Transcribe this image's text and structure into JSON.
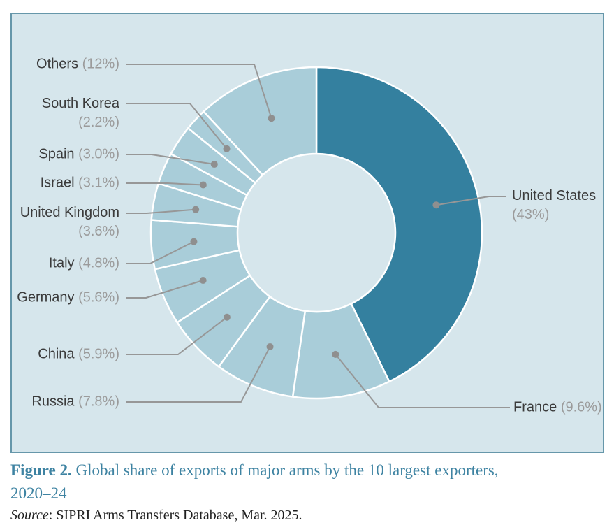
{
  "figure": {
    "caption_label": "Figure 2.",
    "caption_line1": " Global share of exports of major arms by the 10 largest exporters,",
    "caption_line2": "2020–24",
    "source_label": "Source",
    "source_text": ": SIPRI Arms Transfers Database, Mar. 2025."
  },
  "chart_data": {
    "type": "pie",
    "subtype": "donut",
    "title": "Global share of exports of major arms by the 10 largest exporters, 2020–24",
    "unit": "percent of global major-arms exports",
    "start_angle": "top, clockwise",
    "series": [
      {
        "label": "United States",
        "value": 43,
        "display": "(43%)"
      },
      {
        "label": "France",
        "value": 9.6,
        "display": "(9.6%)"
      },
      {
        "label": "Russia",
        "value": 7.8,
        "display": "(7.8%)"
      },
      {
        "label": "China",
        "value": 5.9,
        "display": "(5.9%)"
      },
      {
        "label": "Germany",
        "value": 5.6,
        "display": "(5.6%)"
      },
      {
        "label": "Italy",
        "value": 4.8,
        "display": "(4.8%)"
      },
      {
        "label": "United Kingdom",
        "value": 3.6,
        "display": "(3.6%)"
      },
      {
        "label": "Israel",
        "value": 3.1,
        "display": "(3.1%)"
      },
      {
        "label": "Spain",
        "value": 3.0,
        "display": "(3.0%)"
      },
      {
        "label": "South Korea",
        "value": 2.2,
        "display": "(2.2%)"
      },
      {
        "label": "Others",
        "value": 12,
        "display": "(12%)"
      }
    ],
    "colors": {
      "panel_bg": "#d6e6ec",
      "panel_border": "#6697aa",
      "us_slice": "#34809f",
      "other_slice": "#a9cdd9",
      "slice_border": "#ffffff",
      "leader": "#979797",
      "dot": "#8f8f8f",
      "name_text": "#3b3b3b",
      "pct_text": "#9b9b9b",
      "caption": "#3e83a2",
      "source_text": "#1f1f1f"
    }
  }
}
